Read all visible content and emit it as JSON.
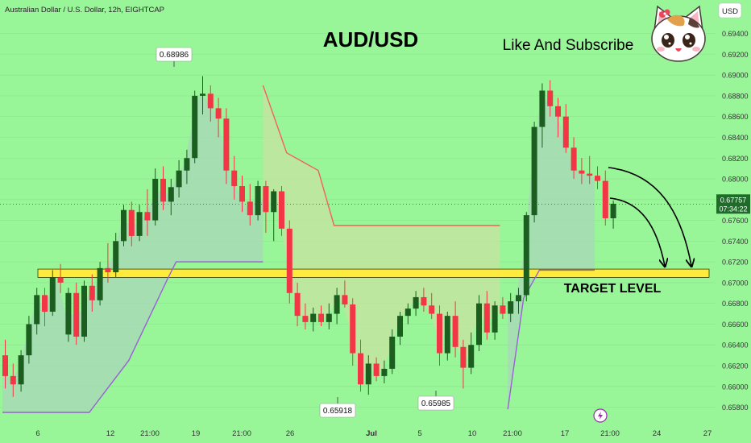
{
  "header": {
    "symbol_line": "Australian Dollar / U.S. Dollar, 12h, EIGHTCAP",
    "currency": "USD"
  },
  "annotations": {
    "title": "AUD/USD",
    "subscribe": "Like And Subscribe",
    "target_label": "TARGET LEVEL",
    "high_label": "0.68986",
    "low_label_1": "0.65918",
    "low_label_2": "0.65985",
    "cat_icon": "cat-face-icon",
    "lightning_icon": "lightning-icon"
  },
  "price_tag": {
    "price": "0.67757",
    "countdown": "07:34:22"
  },
  "colors": {
    "background": "#98f598",
    "bull": "#1b5e20",
    "bear": "#f23645",
    "target_zone": "#ffeb3b",
    "supertrend_up": "#9c5fd6",
    "supertrend_down": "#f0625e",
    "fill_up": "#a8d8b8",
    "fill_down": "#c6e4a0"
  },
  "chart_data": {
    "type": "candlestick",
    "symbol": "AUD/USD",
    "timeframe": "12h",
    "ylim": [
      0.6575,
      0.6949
    ],
    "y_ticks": [
      "0.65800",
      "0.66000",
      "0.66200",
      "0.66400",
      "0.66600",
      "0.66800",
      "0.67000",
      "0.67200",
      "0.67400",
      "0.67600",
      "0.67800",
      "0.68000",
      "0.68200",
      "0.68400",
      "0.68600",
      "0.68800",
      "0.69000",
      "0.69200",
      "0.69400"
    ],
    "x_ticks": [
      "6",
      "12",
      "21:00",
      "19",
      "21:00",
      "26",
      "Jul",
      "5",
      "10",
      "21:00",
      "17",
      "21:00",
      "24",
      "27"
    ],
    "current_price": 0.67757,
    "target_zone": [
      0.6705,
      0.6713
    ],
    "candles": [
      [
        0.663,
        0.6645,
        0.6598,
        0.661
      ],
      [
        0.661,
        0.6622,
        0.659,
        0.6602
      ],
      [
        0.6602,
        0.6635,
        0.6595,
        0.663
      ],
      [
        0.663,
        0.6668,
        0.6622,
        0.666
      ],
      [
        0.666,
        0.6695,
        0.665,
        0.6688
      ],
      [
        0.6688,
        0.6695,
        0.6658,
        0.6672
      ],
      [
        0.6672,
        0.6712,
        0.6668,
        0.6705
      ],
      [
        0.6705,
        0.6718,
        0.669,
        0.67
      ],
      [
        0.665,
        0.6695,
        0.6643,
        0.669
      ],
      [
        0.669,
        0.67,
        0.664,
        0.6648
      ],
      [
        0.6648,
        0.6702,
        0.6643,
        0.6697
      ],
      [
        0.6697,
        0.6708,
        0.6672,
        0.6683
      ],
      [
        0.6683,
        0.672,
        0.6678,
        0.6714
      ],
      [
        0.6714,
        0.6738,
        0.67,
        0.671
      ],
      [
        0.671,
        0.6748,
        0.6705,
        0.674
      ],
      [
        0.674,
        0.6775,
        0.6735,
        0.677
      ],
      [
        0.677,
        0.6778,
        0.6735,
        0.6745
      ],
      [
        0.6745,
        0.6775,
        0.674,
        0.6768
      ],
      [
        0.6768,
        0.679,
        0.6745,
        0.676
      ],
      [
        0.676,
        0.681,
        0.6755,
        0.68
      ],
      [
        0.68,
        0.6812,
        0.677,
        0.6778
      ],
      [
        0.6778,
        0.68,
        0.6765,
        0.6792
      ],
      [
        0.6792,
        0.6818,
        0.6782,
        0.6808
      ],
      [
        0.6808,
        0.6828,
        0.6795,
        0.682
      ],
      [
        0.682,
        0.6885,
        0.6815,
        0.688
      ],
      [
        0.688,
        0.6899,
        0.6862,
        0.6882
      ],
      [
        0.6882,
        0.689,
        0.6855,
        0.6868
      ],
      [
        0.6868,
        0.6878,
        0.684,
        0.6858
      ],
      [
        0.6858,
        0.6868,
        0.6795,
        0.6808
      ],
      [
        0.6808,
        0.6822,
        0.678,
        0.6793
      ],
      [
        0.6793,
        0.6803,
        0.6768,
        0.6778
      ],
      [
        0.6778,
        0.6795,
        0.6755,
        0.6765
      ],
      [
        0.6765,
        0.6798,
        0.676,
        0.6793
      ],
      [
        0.6793,
        0.6798,
        0.6748,
        0.6768
      ],
      [
        0.6768,
        0.679,
        0.674,
        0.6788
      ],
      [
        0.6788,
        0.6793,
        0.6745,
        0.6752
      ],
      [
        0.6752,
        0.676,
        0.668,
        0.669
      ],
      [
        0.669,
        0.67,
        0.6658,
        0.6668
      ],
      [
        0.6668,
        0.668,
        0.6655,
        0.6662
      ],
      [
        0.6662,
        0.6676,
        0.6653,
        0.667
      ],
      [
        0.667,
        0.6678,
        0.6658,
        0.6662
      ],
      [
        0.6662,
        0.668,
        0.6655,
        0.667
      ],
      [
        0.667,
        0.6695,
        0.666,
        0.6688
      ],
      [
        0.6688,
        0.6702,
        0.6676,
        0.6679
      ],
      [
        0.6679,
        0.6685,
        0.662,
        0.6632
      ],
      [
        0.6632,
        0.6645,
        0.6595,
        0.6602
      ],
      [
        0.6602,
        0.663,
        0.6592,
        0.6622
      ],
      [
        0.6622,
        0.6628,
        0.6605,
        0.661
      ],
      [
        0.661,
        0.6625,
        0.6603,
        0.6617
      ],
      [
        0.6617,
        0.6655,
        0.6612,
        0.6648
      ],
      [
        0.6648,
        0.6672,
        0.664,
        0.6668
      ],
      [
        0.6668,
        0.668,
        0.666,
        0.6675
      ],
      [
        0.6675,
        0.6692,
        0.6668,
        0.6686
      ],
      [
        0.6686,
        0.6695,
        0.6672,
        0.6678
      ],
      [
        0.6678,
        0.669,
        0.6665,
        0.667
      ],
      [
        0.667,
        0.6678,
        0.662,
        0.6632
      ],
      [
        0.6632,
        0.6672,
        0.6625,
        0.6668
      ],
      [
        0.6668,
        0.6682,
        0.6628,
        0.6638
      ],
      [
        0.6638,
        0.6645,
        0.6598,
        0.6618
      ],
      [
        0.6618,
        0.6652,
        0.6612,
        0.664
      ],
      [
        0.664,
        0.6688,
        0.6634,
        0.668
      ],
      [
        0.668,
        0.6692,
        0.6645,
        0.6652
      ],
      [
        0.6652,
        0.6682,
        0.6645,
        0.6678
      ],
      [
        0.6678,
        0.6686,
        0.6665,
        0.667
      ],
      [
        0.667,
        0.669,
        0.6662,
        0.6682
      ],
      [
        0.6682,
        0.6695,
        0.667,
        0.6688
      ],
      [
        0.6688,
        0.6768,
        0.6682,
        0.6765
      ],
      [
        0.6765,
        0.6855,
        0.6758,
        0.685
      ],
      [
        0.685,
        0.6892,
        0.683,
        0.6885
      ],
      [
        0.6885,
        0.6895,
        0.686,
        0.687
      ],
      [
        0.687,
        0.6878,
        0.684,
        0.686
      ],
      [
        0.686,
        0.6872,
        0.6825,
        0.683
      ],
      [
        0.683,
        0.684,
        0.68,
        0.6808
      ],
      [
        0.6808,
        0.682,
        0.6795,
        0.6805
      ],
      [
        0.6805,
        0.6822,
        0.6795,
        0.6803
      ],
      [
        0.6803,
        0.6812,
        0.679,
        0.6798
      ],
      [
        0.6798,
        0.6808,
        0.6755,
        0.6762
      ],
      [
        0.6762,
        0.6779,
        0.6752,
        0.6776
      ]
    ]
  }
}
